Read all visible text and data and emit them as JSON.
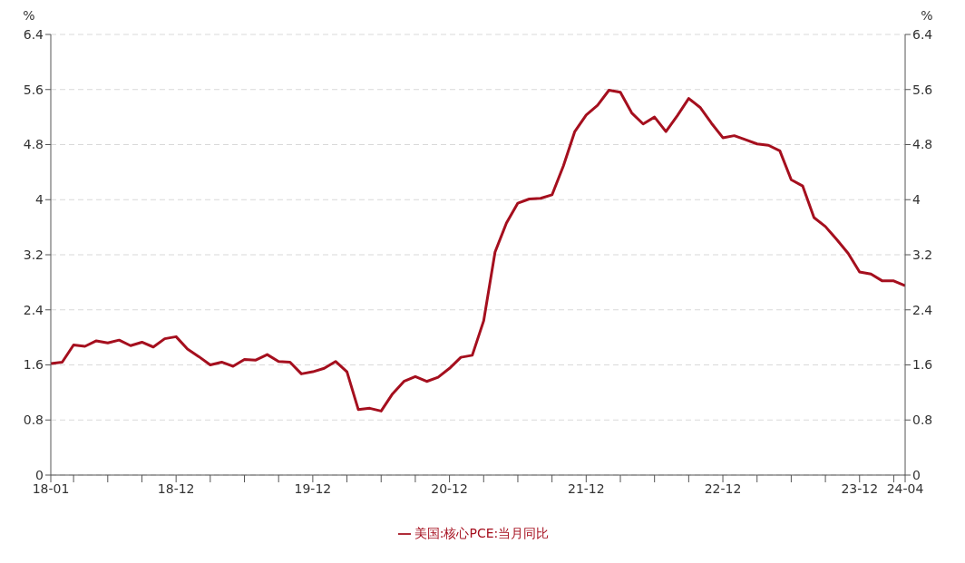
{
  "chart_data": {
    "type": "line",
    "ylabel": "%",
    "y2label": "%",
    "categories": [
      "18-01",
      null,
      null,
      null,
      null,
      null,
      null,
      null,
      null,
      null,
      null,
      "18-12",
      null,
      null,
      null,
      null,
      null,
      null,
      null,
      null,
      null,
      null,
      null,
      "19-12",
      null,
      null,
      null,
      null,
      null,
      null,
      null,
      null,
      null,
      null,
      null,
      "20-12",
      null,
      null,
      null,
      null,
      null,
      null,
      null,
      null,
      null,
      null,
      null,
      "21-12",
      null,
      null,
      null,
      null,
      null,
      null,
      null,
      null,
      null,
      null,
      null,
      "22-12",
      null,
      null,
      null,
      null,
      null,
      null,
      null,
      null,
      null,
      null,
      null,
      "23-12",
      null,
      null,
      null,
      "24-04"
    ],
    "series": [
      {
        "name": "美国:核心PCE:当月同比",
        "color": "#a50f1e",
        "values": [
          1.62,
          1.64,
          1.89,
          1.87,
          1.95,
          1.92,
          1.96,
          1.88,
          1.93,
          1.86,
          1.98,
          2.01,
          1.83,
          1.72,
          1.6,
          1.64,
          1.58,
          1.68,
          1.67,
          1.75,
          1.65,
          1.64,
          1.47,
          1.5,
          1.55,
          1.65,
          1.5,
          0.95,
          0.97,
          0.93,
          1.18,
          1.36,
          1.43,
          1.36,
          1.42,
          1.55,
          1.71,
          1.74,
          2.24,
          3.24,
          3.66,
          3.95,
          4.01,
          4.02,
          4.07,
          4.49,
          4.99,
          5.23,
          5.37,
          5.59,
          5.56,
          5.26,
          5.1,
          5.2,
          4.99,
          5.22,
          5.47,
          5.34,
          5.11,
          4.9,
          4.93,
          4.87,
          4.81,
          4.79,
          4.71,
          4.29,
          4.2,
          3.74,
          3.61,
          3.42,
          3.22,
          2.95,
          2.92,
          2.82,
          2.82,
          2.75
        ]
      }
    ],
    "ylim": [
      0,
      6.4
    ],
    "yticks": [
      0,
      0.8,
      1.6,
      2.4,
      3.2,
      4,
      4.8,
      5.6,
      6.4
    ],
    "y2lim": [
      0,
      6.4
    ],
    "y2ticks": [
      0,
      0.8,
      1.6,
      2.4,
      3.2,
      4,
      4.8,
      5.6,
      6.4
    ],
    "grid": "y",
    "legend": "bottom",
    "marker": "none",
    "line_style": "solid"
  }
}
